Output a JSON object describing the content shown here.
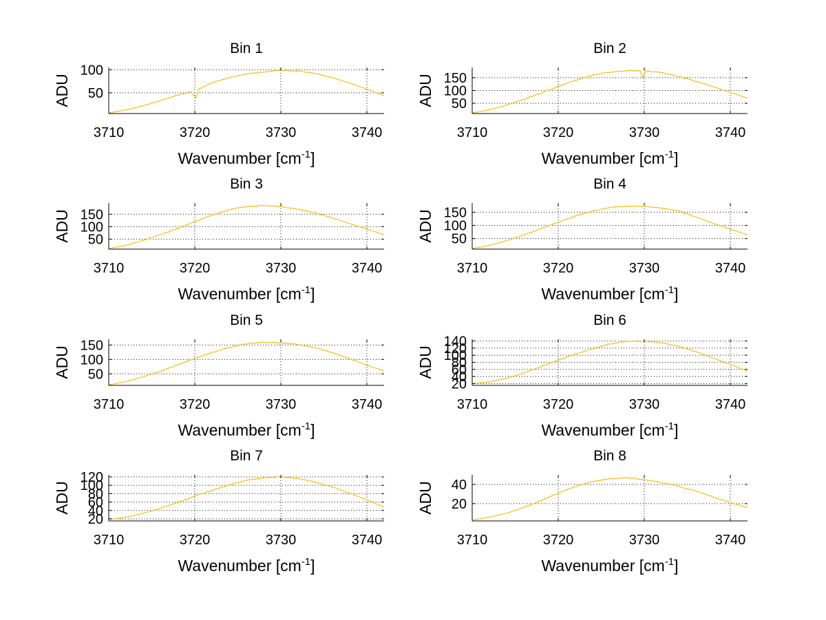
{
  "chart_data": [
    {
      "type": "line",
      "title": "Bin 1",
      "xlabel": "Wavenumber [cm",
      "xlabel_sup": "-1",
      "xlabel_close": "]",
      "ylabel": "ADU",
      "xlim": [
        3710,
        3742
      ],
      "ylim": [
        5,
        105
      ],
      "xticks": [
        3710,
        3720,
        3730,
        3740
      ],
      "yticks": [
        50,
        100
      ],
      "grid": true,
      "line_color": "#f5b800",
      "series": [
        {
          "name": "Bin 1",
          "x": [
            3710,
            3712,
            3714,
            3716,
            3718,
            3719.5,
            3720.1,
            3720.5,
            3722,
            3724,
            3726,
            3728,
            3730,
            3732,
            3734,
            3736,
            3738,
            3740,
            3742
          ],
          "y": [
            6,
            13,
            22,
            33,
            45,
            52,
            40,
            58,
            72,
            83,
            91,
            95,
            99,
            97,
            92,
            83,
            71,
            58,
            44
          ],
          "dip": [
            3720.1,
            40
          ]
        }
      ]
    },
    {
      "type": "line",
      "title": "Bin 2",
      "xlabel": "Wavenumber [cm",
      "xlabel_sup": "-1",
      "xlabel_close": "]",
      "ylabel": "ADU",
      "xlim": [
        3710,
        3742
      ],
      "ylim": [
        10,
        190
      ],
      "xticks": [
        3710,
        3720,
        3730,
        3740
      ],
      "yticks": [
        50,
        100,
        150
      ],
      "grid": true,
      "line_color": "#f5b800",
      "series": [
        {
          "name": "Bin 2",
          "x": [
            3710,
            3712,
            3714,
            3716,
            3718,
            3720,
            3722,
            3724,
            3726,
            3728,
            3729.5,
            3729.8,
            3730.2,
            3732,
            3734,
            3736,
            3738,
            3740,
            3742
          ],
          "y": [
            12,
            25,
            43,
            65,
            90,
            116,
            140,
            160,
            172,
            177,
            178,
            150,
            176,
            170,
            155,
            136,
            115,
            92,
            70
          ],
          "dip": [
            3729.8,
            150
          ]
        }
      ]
    },
    {
      "type": "line",
      "title": "Bin 3",
      "xlabel": "Wavenumber [cm",
      "xlabel_sup": "-1",
      "xlabel_close": "]",
      "ylabel": "ADU",
      "xlim": [
        3710,
        3742
      ],
      "ylim": [
        10,
        195
      ],
      "xticks": [
        3710,
        3720,
        3730,
        3740
      ],
      "yticks": [
        50,
        100,
        150
      ],
      "grid": true,
      "line_color": "#f5b800",
      "series": [
        {
          "name": "Bin 3",
          "x": [
            3710,
            3712,
            3714,
            3716,
            3718,
            3720,
            3722,
            3724,
            3726,
            3728,
            3730,
            3732,
            3734,
            3736,
            3738,
            3740,
            3742
          ],
          "y": [
            12,
            25,
            45,
            68,
            93,
            120,
            146,
            168,
            180,
            185,
            180,
            170,
            155,
            135,
            112,
            90,
            68
          ]
        }
      ]
    },
    {
      "type": "line",
      "title": "Bin 4",
      "xlabel": "Wavenumber [cm",
      "xlabel_sup": "-1",
      "xlabel_close": "]",
      "ylabel": "ADU",
      "xlim": [
        3710,
        3742
      ],
      "ylim": [
        10,
        185
      ],
      "xticks": [
        3710,
        3720,
        3730,
        3740
      ],
      "yticks": [
        50,
        100,
        150
      ],
      "grid": true,
      "line_color": "#f5b800",
      "series": [
        {
          "name": "Bin 4",
          "x": [
            3710,
            3712,
            3714,
            3716,
            3718,
            3720,
            3722,
            3724,
            3726,
            3728,
            3730,
            3732,
            3734,
            3736,
            3738,
            3740,
            3742
          ],
          "y": [
            12,
            24,
            42,
            64,
            88,
            112,
            135,
            155,
            168,
            173,
            172,
            166,
            155,
            132,
            108,
            86,
            64
          ]
        }
      ]
    },
    {
      "type": "line",
      "title": "Bin 5",
      "xlabel": "Wavenumber [cm",
      "xlabel_sup": "-1",
      "xlabel_close": "]",
      "ylabel": "ADU",
      "xlim": [
        3710,
        3742
      ],
      "ylim": [
        10,
        170
      ],
      "xticks": [
        3710,
        3720,
        3730,
        3740
      ],
      "yticks": [
        50,
        100,
        150
      ],
      "grid": true,
      "line_color": "#f5b800",
      "series": [
        {
          "name": "Bin 5",
          "x": [
            3710,
            3712,
            3714,
            3716,
            3718,
            3720,
            3722,
            3724,
            3726,
            3728,
            3730,
            3732,
            3734,
            3736,
            3738,
            3740,
            3742
          ],
          "y": [
            12,
            23,
            40,
            59,
            81,
            103,
            124,
            142,
            155,
            160,
            158,
            152,
            141,
            124,
            102,
            80,
            60
          ]
        }
      ]
    },
    {
      "type": "line",
      "title": "Bin 6",
      "xlabel": "Wavenumber [cm",
      "xlabel_sup": "-1",
      "xlabel_close": "]",
      "ylabel": "ADU",
      "xlim": [
        3710,
        3742
      ],
      "ylim": [
        15,
        145
      ],
      "xticks": [
        3710,
        3720,
        3730,
        3740
      ],
      "yticks": [
        20,
        40,
        60,
        80,
        100,
        120,
        140
      ],
      "grid": true,
      "line_color": "#f5b800",
      "series": [
        {
          "name": "Bin 6",
          "x": [
            3710,
            3712,
            3714,
            3716,
            3718,
            3720,
            3722,
            3724,
            3726,
            3728,
            3730,
            3732,
            3734,
            3736,
            3738,
            3740,
            3742
          ],
          "y": [
            20,
            25,
            35,
            50,
            68,
            86,
            103,
            118,
            132,
            139,
            140,
            135,
            125,
            110,
            92,
            74,
            55
          ]
        }
      ]
    },
    {
      "type": "line",
      "title": "Bin 7",
      "xlabel": "Wavenumber [cm",
      "xlabel_sup": "-1",
      "xlabel_close": "]",
      "ylabel": "ADU",
      "xlim": [
        3710,
        3742
      ],
      "ylim": [
        15,
        125
      ],
      "xticks": [
        3710,
        3720,
        3730,
        3740
      ],
      "yticks": [
        20,
        40,
        60,
        80,
        100,
        120
      ],
      "grid": true,
      "line_color": "#f5b800",
      "series": [
        {
          "name": "Bin 7",
          "x": [
            3710,
            3712,
            3714,
            3716,
            3718,
            3720,
            3722,
            3724,
            3726,
            3728,
            3730,
            3732,
            3734,
            3736,
            3738,
            3740,
            3742
          ],
          "y": [
            18,
            24,
            33,
            45,
            59,
            74,
            88,
            101,
            112,
            118,
            120,
            116,
            108,
            96,
            81,
            65,
            48
          ]
        }
      ]
    },
    {
      "type": "line",
      "title": "Bin 8",
      "xlabel": "Wavenumber [cm",
      "xlabel_sup": "-1",
      "xlabel_close": "]",
      "ylabel": "ADU",
      "xlim": [
        3710,
        3742
      ],
      "ylim": [
        2,
        50
      ],
      "xticks": [
        3710,
        3720,
        3730,
        3740
      ],
      "yticks": [
        20,
        40
      ],
      "grid": true,
      "line_color": "#f5b800",
      "series": [
        {
          "name": "Bin 8",
          "x": [
            3710,
            3712,
            3714,
            3716,
            3718,
            3720,
            3722,
            3724,
            3726,
            3728,
            3730,
            3732,
            3734,
            3736,
            3738,
            3740,
            3742
          ],
          "y": [
            3,
            6,
            10,
            16,
            23,
            31,
            38,
            43,
            46,
            47,
            45,
            42,
            38,
            33,
            27,
            21,
            16
          ]
        }
      ]
    }
  ]
}
